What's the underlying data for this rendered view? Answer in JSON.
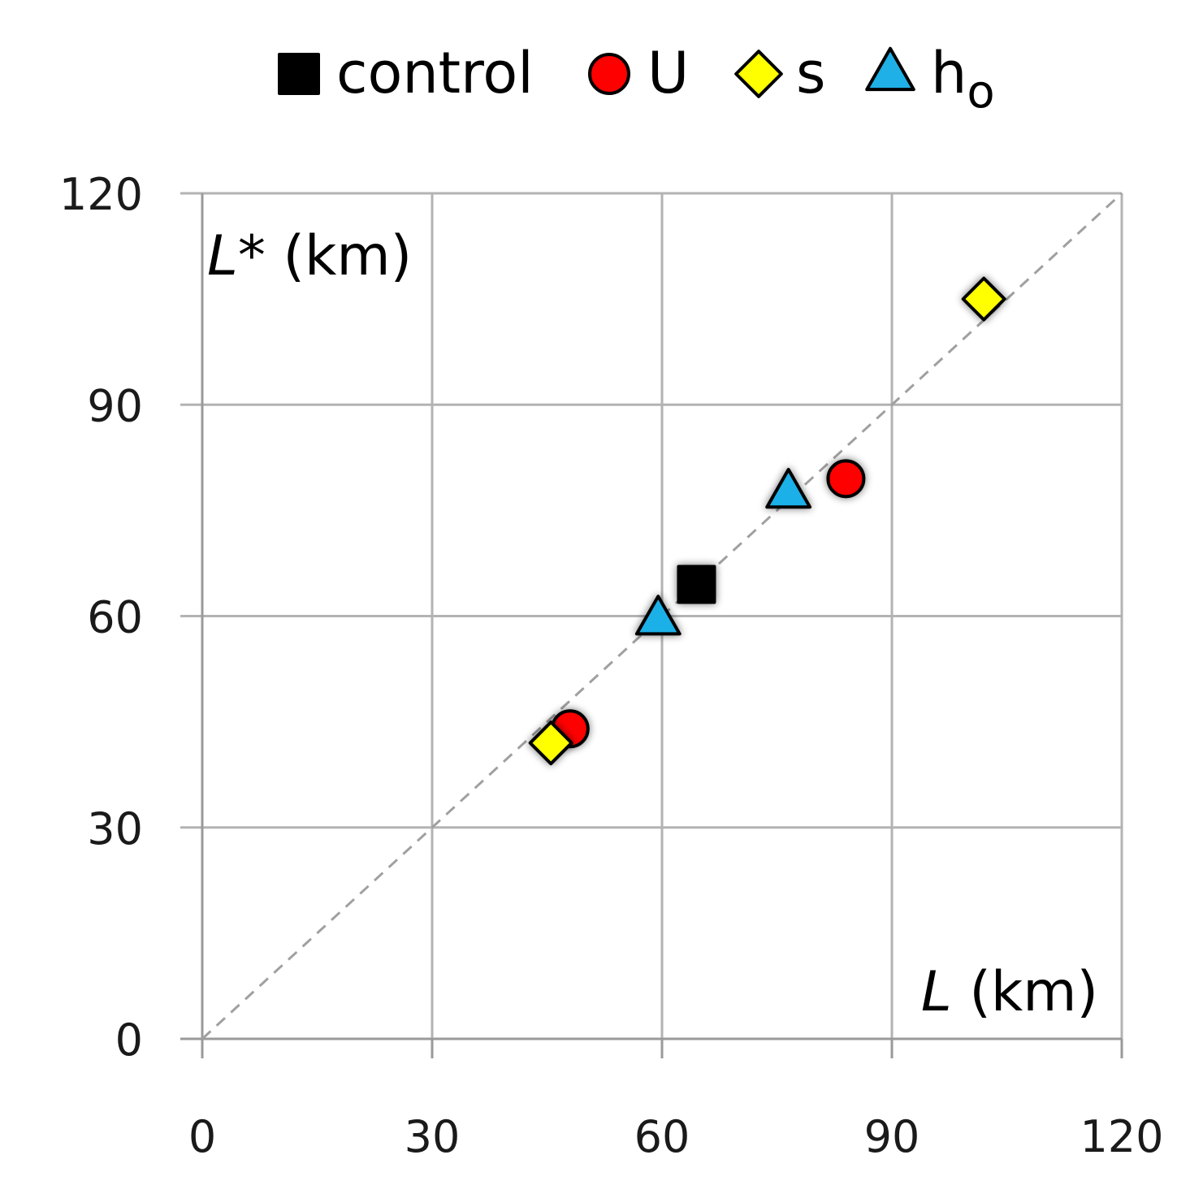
{
  "chart_data": {
    "type": "scatter",
    "title": "",
    "xlabel": "L (km)",
    "ylabel": "L* (km)",
    "xlim": [
      0,
      120
    ],
    "ylim": [
      0,
      120
    ],
    "xticks": [
      0,
      30,
      60,
      90,
      120
    ],
    "yticks": [
      0,
      30,
      60,
      90,
      120
    ],
    "grid": true,
    "legend_position": "top",
    "reference_line": {
      "type": "identity",
      "style": "dashed",
      "color": "#a0a0a0"
    },
    "series": [
      {
        "name": "control",
        "marker": "square",
        "color": "#000000",
        "points": [
          {
            "x": 64.5,
            "y": 64.5
          }
        ]
      },
      {
        "name": "U",
        "marker": "circle",
        "color": "#ff0000",
        "points": [
          {
            "x": 48.0,
            "y": 44.0
          },
          {
            "x": 84.0,
            "y": 79.5
          }
        ]
      },
      {
        "name": "s",
        "marker": "diamond",
        "color": "#ffff00",
        "points": [
          {
            "x": 45.5,
            "y": 42.0
          },
          {
            "x": 102.0,
            "y": 105.0
          }
        ]
      },
      {
        "name": "h",
        "name_subscript": "o",
        "marker": "triangle",
        "color": "#1fb0e8",
        "points": [
          {
            "x": 59.5,
            "y": 59.5
          },
          {
            "x": 76.5,
            "y": 77.5
          }
        ]
      }
    ]
  }
}
